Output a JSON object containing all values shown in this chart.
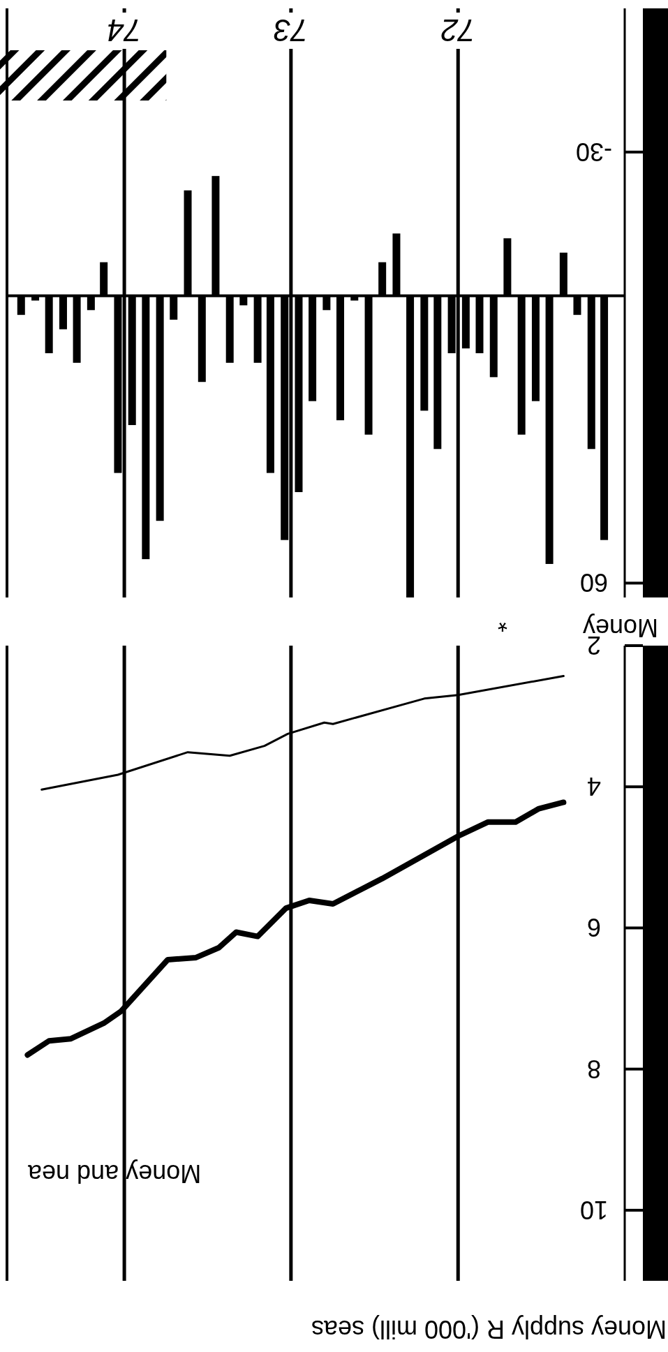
{
  "chart_data": [
    {
      "type": "line",
      "title": "Money supply R ('000 mill) seas",
      "xlim": [
        "1974-09-15",
        "1971-01"
      ],
      "ylim": [
        11,
        2
      ],
      "yticks": [
        2,
        4,
        6,
        8,
        10
      ],
      "xticks": [
        {
          "value": "1972-01",
          "label": null
        },
        {
          "value": "1973-01",
          "label": null
        },
        {
          "value": "1974-01",
          "label": null
        }
      ],
      "tick_labels": "y",
      "grid": "x",
      "series": [
        {
          "color": "#000000",
          "x": [
            "1971-05-15",
            "1972-01-01",
            "1972-03-15",
            "1972-10-01",
            "1972-10-20",
            "1973-01-08",
            "1973-02-28",
            "1973-05-15",
            "1973-08-15",
            "1974-01-15",
            "1974-07-01"
          ],
          "values": [
            2.43,
            2.7,
            2.75,
            3.11,
            3.09,
            3.25,
            3.42,
            3.56,
            3.51,
            3.83,
            4.04
          ]
        },
        {
          "name": "Money and nea",
          "color": "#000000",
          "x": [
            "1971-05-15",
            "1971-07-08",
            "1971-08-28",
            "1971-10-28",
            "1972-01-01",
            "1972-06-15",
            "1972-10-01",
            "1972-11-22",
            "1973-01-12",
            "1973-03-15",
            "1973-05-01",
            "1973-06-08",
            "1973-07-28",
            "1973-09-28",
            "1974-01-08",
            "1974-02-15",
            "1974-04-28",
            "1974-06-15",
            "1974-08-01"
          ],
          "values": [
            4.22,
            4.31,
            4.5,
            4.5,
            4.7,
            5.3,
            5.66,
            5.61,
            5.72,
            6.12,
            6.06,
            6.28,
            6.42,
            6.45,
            7.18,
            7.35,
            7.57,
            7.6,
            7.8
          ]
        }
      ]
    },
    {
      "type": "bar",
      "title": "Money",
      "annotations": [
        "*"
      ],
      "xlim": [
        "1974-09-15",
        "1971-01"
      ],
      "ylim": [
        63,
        -60
      ],
      "yticks": [
        -30,
        60
      ],
      "xticks": [
        {
          "value": "1972-01",
          "label": "72"
        },
        {
          "value": "1973-01",
          "label": "73"
        },
        {
          "value": "1974-01",
          "label": "74"
        }
      ],
      "grid": "x",
      "color": "#000000",
      "bands": [
        {
          "axis": "x",
          "from": "1973-10",
          "to": "1974-09-15"
        }
      ],
      "x": [
        "1971-02-15",
        "1971-03-15",
        "1971-04-15",
        "1971-05-15",
        "1971-06-15",
        "1971-07-15",
        "1971-08-15",
        "1971-09-15",
        "1971-10-15",
        "1971-11-15",
        "1971-12-15",
        "1972-01-15",
        "1972-02-15",
        "1972-03-15",
        "1972-04-15",
        "1972-05-15",
        "1972-06-15",
        "1972-07-15",
        "1972-08-15",
        "1972-09-15",
        "1972-10-15",
        "1972-11-15",
        "1972-12-15",
        "1973-01-15",
        "1973-02-15",
        "1973-03-15",
        "1973-04-15",
        "1973-05-15",
        "1973-06-15",
        "1973-07-15",
        "1973-08-15",
        "1973-09-15",
        "1973-10-15",
        "1973-11-15",
        "1973-12-15",
        "1974-01-15",
        "1974-02-15",
        "1974-03-15",
        "1974-04-15",
        "1974-05-15",
        "1974-06-15",
        "1974-07-15",
        "1974-08-15"
      ],
      "values": [
        51,
        32,
        4,
        -9,
        56,
        22,
        29,
        -12,
        17,
        12,
        11,
        12,
        32,
        24,
        63,
        -13,
        -7,
        29,
        1,
        26,
        3,
        22,
        41,
        51,
        37,
        14,
        2,
        14,
        -25,
        18,
        -22,
        5,
        47,
        55,
        27,
        37,
        -7,
        3,
        14,
        7,
        12,
        1,
        4
      ]
    }
  ]
}
